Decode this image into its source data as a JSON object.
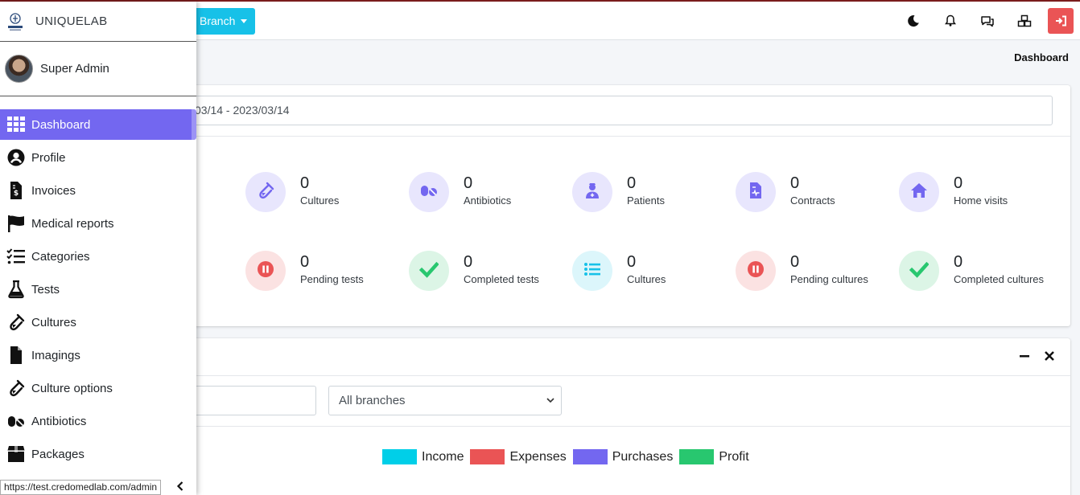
{
  "topbar": {
    "branch_label": "Branch",
    "colors": {
      "branch": "#17c1e8",
      "logout": "#ea5455",
      "top_border": "#7a1c1c"
    }
  },
  "breadcrumb": "Dashboard",
  "filters": {
    "date_range": "03/14 - 2023/03/14",
    "branch_select": "All branches"
  },
  "stats_row1": [
    {
      "value": "0",
      "label": "Cultures",
      "icon": "test-tube-icon",
      "bg": "#e8e6fd",
      "color": "#7367f0"
    },
    {
      "value": "0",
      "label": "Antibiotics",
      "icon": "pills-icon",
      "bg": "#e8e6fd",
      "color": "#7367f0"
    },
    {
      "value": "0",
      "label": "Patients",
      "icon": "user-nurse-icon",
      "bg": "#e8e6fd",
      "color": "#7367f0"
    },
    {
      "value": "0",
      "label": "Contracts",
      "icon": "file-medical-icon",
      "bg": "#e8e6fd",
      "color": "#7367f0"
    },
    {
      "value": "0",
      "label": "Home visits",
      "icon": "home-icon",
      "bg": "#e8e6fd",
      "color": "#7367f0"
    }
  ],
  "stats_row2": [
    {
      "value": "0",
      "label": "Pending tests",
      "icon": "pause-circle-icon",
      "bg": "#fbe2e2",
      "color": "#ea5455"
    },
    {
      "value": "0",
      "label": "Completed tests",
      "icon": "check-icon",
      "bg": "#dcf5e6",
      "color": "#28c76f"
    },
    {
      "value": "0",
      "label": "Cultures",
      "icon": "list-icon",
      "bg": "#dcf6fb",
      "color": "#17c1e8"
    },
    {
      "value": "0",
      "label": "Pending cultures",
      "icon": "pause-circle-icon",
      "bg": "#fbe2e2",
      "color": "#ea5455"
    },
    {
      "value": "0",
      "label": "Completed cultures",
      "icon": "check-icon",
      "bg": "#dcf5e6",
      "color": "#28c76f"
    }
  ],
  "legend": [
    {
      "label": "Income",
      "color": "#00cfe8"
    },
    {
      "label": "Expenses",
      "color": "#ea5455"
    },
    {
      "label": "Purchases",
      "color": "#7367f0"
    },
    {
      "label": "Profit",
      "color": "#28c76f"
    }
  ],
  "sidebar": {
    "brand": "UNIQUELAB",
    "user_name": "Super Admin",
    "items": [
      {
        "label": "Dashboard",
        "icon": "grid-icon",
        "active": true
      },
      {
        "label": "Profile",
        "icon": "user-circle-icon"
      },
      {
        "label": "Invoices",
        "icon": "invoice-icon"
      },
      {
        "label": "Medical reports",
        "icon": "flag-icon"
      },
      {
        "label": "Categories",
        "icon": "list-check-icon"
      },
      {
        "label": "Tests",
        "icon": "flask-icon"
      },
      {
        "label": "Cultures",
        "icon": "test-tube-icon"
      },
      {
        "label": "Imagings",
        "icon": "file-icon"
      },
      {
        "label": "Culture options",
        "icon": "test-tube-icon"
      },
      {
        "label": "Antibiotics",
        "icon": "pills-icon"
      },
      {
        "label": "Packages",
        "icon": "box-icon"
      }
    ],
    "accent": "#7367f0"
  },
  "status_url": "https://test.credomedlab.com/admin"
}
